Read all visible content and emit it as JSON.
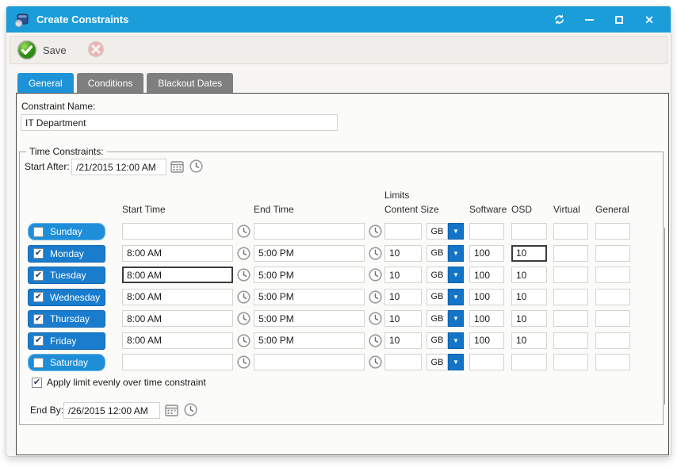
{
  "window": {
    "title": "Create Constraints",
    "controls": {
      "refresh": "refresh",
      "minimize": "minimize",
      "maximize": "maximize",
      "close": "close"
    }
  },
  "toolbar": {
    "save_label": "Save"
  },
  "tabs": [
    {
      "label": "General",
      "active": true
    },
    {
      "label": "Conditions",
      "active": false
    },
    {
      "label": "Blackout Dates",
      "active": false
    }
  ],
  "form": {
    "constraint_name_label": "Constraint Name:",
    "constraint_name_value": "IT Department"
  },
  "time_constraints": {
    "legend": "Time Constraints:",
    "start_after_label": "Start After:",
    "start_after_value": "/21/2015 12:00 AM",
    "end_by_label": "End By:",
    "end_by_value": "/26/2015 12:00 AM",
    "apply_limit_label": "Apply limit evenly over time constraint",
    "apply_limit_checked": true,
    "headers": {
      "limits": "Limits",
      "start_time": "Start Time",
      "end_time": "End Time",
      "content_size": "Content Size",
      "software": "Software",
      "osd": "OSD",
      "virtual": "Virtual",
      "general": "General"
    },
    "days": [
      {
        "label": "Sunday",
        "checked": false,
        "start": "",
        "end": "",
        "content_size": "",
        "unit": "GB",
        "software": "",
        "osd": "",
        "virtual": "",
        "general": ""
      },
      {
        "label": "Monday",
        "checked": true,
        "start": "8:00 AM",
        "end": "5:00 PM",
        "content_size": "10",
        "unit": "GB",
        "software": "100",
        "osd": "10",
        "virtual": "",
        "general": "",
        "osd_focused": true
      },
      {
        "label": "Tuesday",
        "checked": true,
        "start": "8:00 AM",
        "end": "5:00 PM",
        "content_size": "10",
        "unit": "GB",
        "software": "100",
        "osd": "10",
        "virtual": "",
        "general": "",
        "start_focused": true
      },
      {
        "label": "Wednesday",
        "checked": true,
        "start": "8:00 AM",
        "end": "5:00 PM",
        "content_size": "10",
        "unit": "GB",
        "software": "100",
        "osd": "10",
        "virtual": "",
        "general": ""
      },
      {
        "label": "Thursday",
        "checked": true,
        "start": "8:00 AM",
        "end": "5:00 PM",
        "content_size": "10",
        "unit": "GB",
        "software": "100",
        "osd": "10",
        "virtual": "",
        "general": ""
      },
      {
        "label": "Friday",
        "checked": true,
        "start": "8:00 AM",
        "end": "5:00 PM",
        "content_size": "10",
        "unit": "GB",
        "software": "100",
        "osd": "10",
        "virtual": "",
        "general": ""
      },
      {
        "label": "Saturday",
        "checked": false,
        "start": "",
        "end": "",
        "content_size": "",
        "unit": "GB",
        "software": "",
        "osd": "",
        "virtual": "",
        "general": ""
      }
    ]
  },
  "icons": {
    "app": "cube-sphere",
    "refresh": "circular-arrows",
    "save": "green-circle-check",
    "cancel": "red-circle-x",
    "calendar": "calendar-grid",
    "clock": "clock-face",
    "dropdown": "down-triangle",
    "check": "✔"
  },
  "colors": {
    "titlebar": "#1b9dd9",
    "tab_active": "#1e93d8",
    "tab_inactive": "#7f7f7f",
    "day_checked": "#1a7ccd",
    "day_unchecked": "#1f8ed8",
    "unit_button": "#1374c8",
    "save_green": "#4aa327",
    "toolbar_bg": "#f0eeea"
  }
}
